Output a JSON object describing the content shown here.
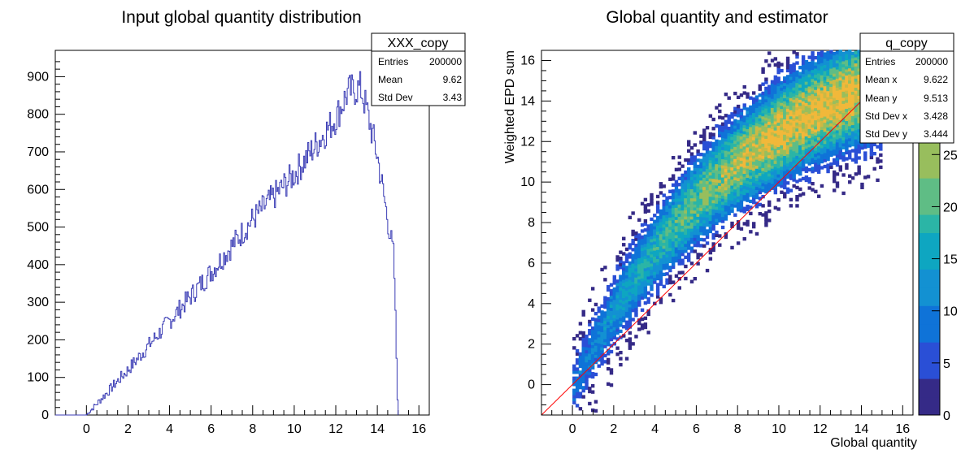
{
  "chart_data": [
    {
      "type": "bar",
      "title": "Input global quantity distribution",
      "xlabel": "",
      "ylabel": "",
      "xlim": [
        -1.5,
        16.5
      ],
      "ylim": [
        0,
        970
      ],
      "x_ticks": [
        "0",
        "2",
        "4",
        "6",
        "8",
        "10",
        "12",
        "14",
        "16"
      ],
      "y_ticks": [
        "0",
        "100",
        "200",
        "300",
        "400",
        "500",
        "600",
        "700",
        "800",
        "900"
      ],
      "line_color": "#3b3db5",
      "histogram": {
        "bin_width": 0.05,
        "description_points_x": [
          0,
          2,
          4,
          6,
          8,
          10,
          12,
          12.6,
          13.2,
          13.5,
          14.0,
          14.5,
          14.8,
          14.95,
          15.0
        ],
        "description_points_y": [
          0,
          120,
          250,
          380,
          520,
          640,
          790,
          860,
          870,
          810,
          690,
          520,
          420,
          100,
          0
        ]
      },
      "stats": {
        "title": "XXX_copy",
        "rows": [
          {
            "label": "Entries",
            "value": "200000"
          },
          {
            "label": "Mean",
            "value": "9.62"
          },
          {
            "label": "Std Dev",
            "value": "3.43"
          }
        ]
      }
    },
    {
      "type": "heatmap",
      "title": "Global quantity and estimator",
      "xlabel": "Global quantity",
      "ylabel": "Weighted EPD sum",
      "xlim": [
        -1.5,
        16.5
      ],
      "ylim": [
        -1.5,
        16.5
      ],
      "x_ticks": [
        "0",
        "2",
        "4",
        "6",
        "8",
        "10",
        "12",
        "14",
        "16"
      ],
      "y_ticks": [
        "0",
        "2",
        "4",
        "6",
        "8",
        "10",
        "12",
        "14",
        "16"
      ],
      "colorbar": {
        "range": [
          0,
          35
        ],
        "ticks": [
          "0",
          "5",
          "10",
          "15",
          "20",
          "25"
        ],
        "colors": [
          "#352a87",
          "#2a4fd6",
          "#0f73d8",
          "#1391d2",
          "#0ea6c1",
          "#2bb5a6",
          "#5fbd85",
          "#98be5d",
          "#cbb944",
          "#f1b83a",
          "#f9d82b"
        ]
      },
      "diagonal_line": {
        "x": [
          -1.5,
          16.5
        ],
        "y": [
          -1.5,
          16.5
        ],
        "color": "#ff0000"
      },
      "stats": {
        "title": "q_copy",
        "rows": [
          {
            "label": "Entries",
            "value": "200000"
          },
          {
            "label": "Mean x",
            "value": "9.622"
          },
          {
            "label": "Mean y",
            "value": "9.513"
          },
          {
            "label": "Std Dev x",
            "value": "3.428"
          },
          {
            "label": "Std Dev y",
            "value": "3.444"
          }
        ]
      }
    }
  ]
}
